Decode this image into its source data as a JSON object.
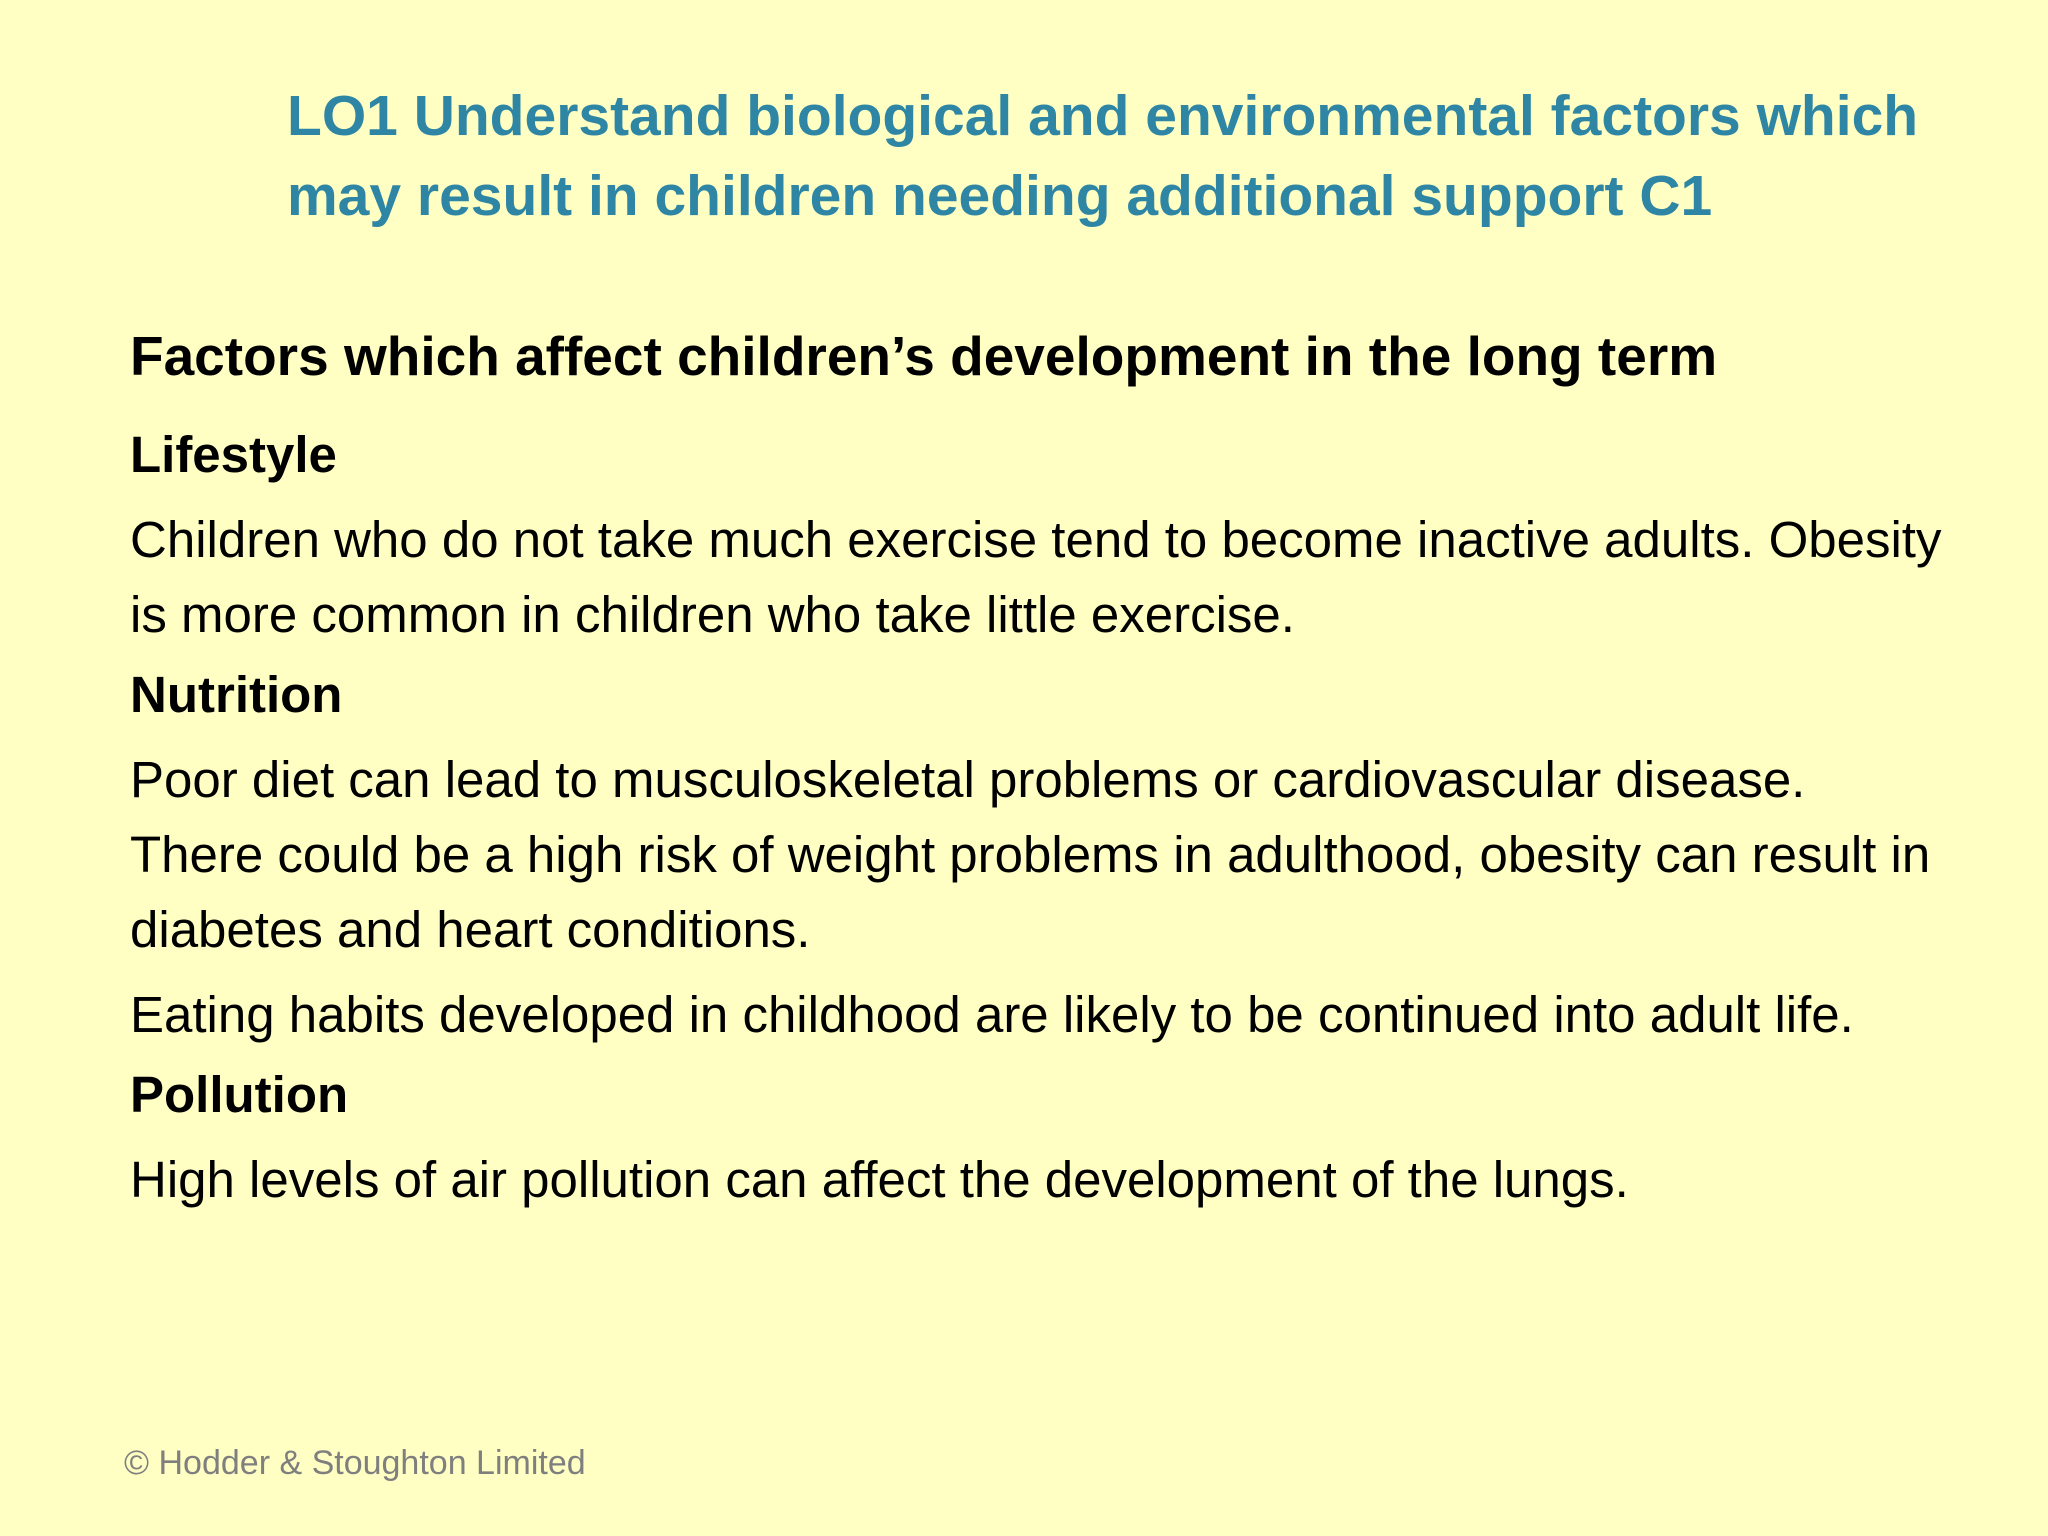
{
  "slide": {
    "title_line1": "LO1 Understand biological and environmental factors which",
    "title_line2": "may result in children needing additional support C1",
    "heading": "Factors which affect children’s development in the long term",
    "sections": [
      {
        "subheading": "Lifestyle",
        "paragraphs": [
          "Children who do not take much exercise tend to become inactive adults. Obesity is more common in children who take little exercise."
        ]
      },
      {
        "subheading": "Nutrition",
        "paragraphs": [
          "Poor diet can lead to musculoskeletal problems or cardiovascular disease. There could be a high risk of weight problems in adulthood, obesity can result in diabetes and heart conditions.",
          "Eating habits developed in childhood are likely to be continued into adult life."
        ]
      },
      {
        "subheading": "Pollution",
        "paragraphs": [
          "High levels of air pollution can affect the development of the lungs."
        ]
      }
    ],
    "footer": "© Hodder & Stoughton Limited"
  },
  "colors": {
    "background": "#ffffc4",
    "title": "#2e86a4",
    "body_text": "#000000",
    "footer": "#7f7f7f"
  }
}
